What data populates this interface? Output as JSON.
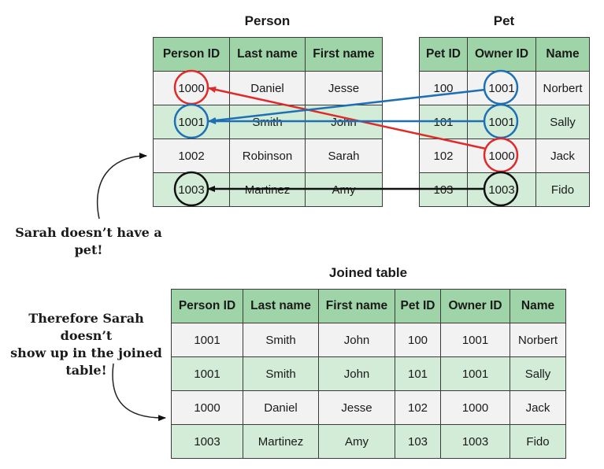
{
  "person": {
    "title": "Person",
    "headers": [
      "Person ID",
      "Last name",
      "First name"
    ],
    "rows": [
      [
        "1000",
        "Daniel",
        "Jesse"
      ],
      [
        "1001",
        "Smith",
        "John"
      ],
      [
        "1002",
        "Robinson",
        "Sarah"
      ],
      [
        "1003",
        "Martinez",
        "Amy"
      ]
    ]
  },
  "pet": {
    "title": "Pet",
    "headers": [
      "Pet ID",
      "Owner ID",
      "Name"
    ],
    "rows": [
      [
        "100",
        "1001",
        "Norbert"
      ],
      [
        "101",
        "1001",
        "Sally"
      ],
      [
        "102",
        "1000",
        "Jack"
      ],
      [
        "103",
        "1003",
        "Fido"
      ]
    ]
  },
  "joined": {
    "title": "Joined table",
    "headers": [
      "Person ID",
      "Last name",
      "First name",
      "Pet ID",
      "Owner ID",
      "Name"
    ],
    "rows": [
      [
        "1001",
        "Smith",
        "John",
        "100",
        "1001",
        "Norbert"
      ],
      [
        "1001",
        "Smith",
        "John",
        "101",
        "1001",
        "Sally"
      ],
      [
        "1000",
        "Daniel",
        "Jesse",
        "102",
        "1000",
        "Jack"
      ],
      [
        "1003",
        "Martinez",
        "Amy",
        "103",
        "1003",
        "Fido"
      ]
    ]
  },
  "notes": {
    "no_pet_line1": "Sarah doesn’t have a",
    "no_pet_line2": "pet!",
    "excluded_line1": "Therefore Sarah doesn’t",
    "excluded_line2": "show up in the joined",
    "excluded_line3": "table!"
  },
  "colors": {
    "header_green": "#9fd3a8",
    "row_light": "#f2f2f2",
    "row_green": "#d3ecd7",
    "link_red": "#e02a2a",
    "link_blue": "#1f6fb5",
    "link_black": "#111111"
  }
}
